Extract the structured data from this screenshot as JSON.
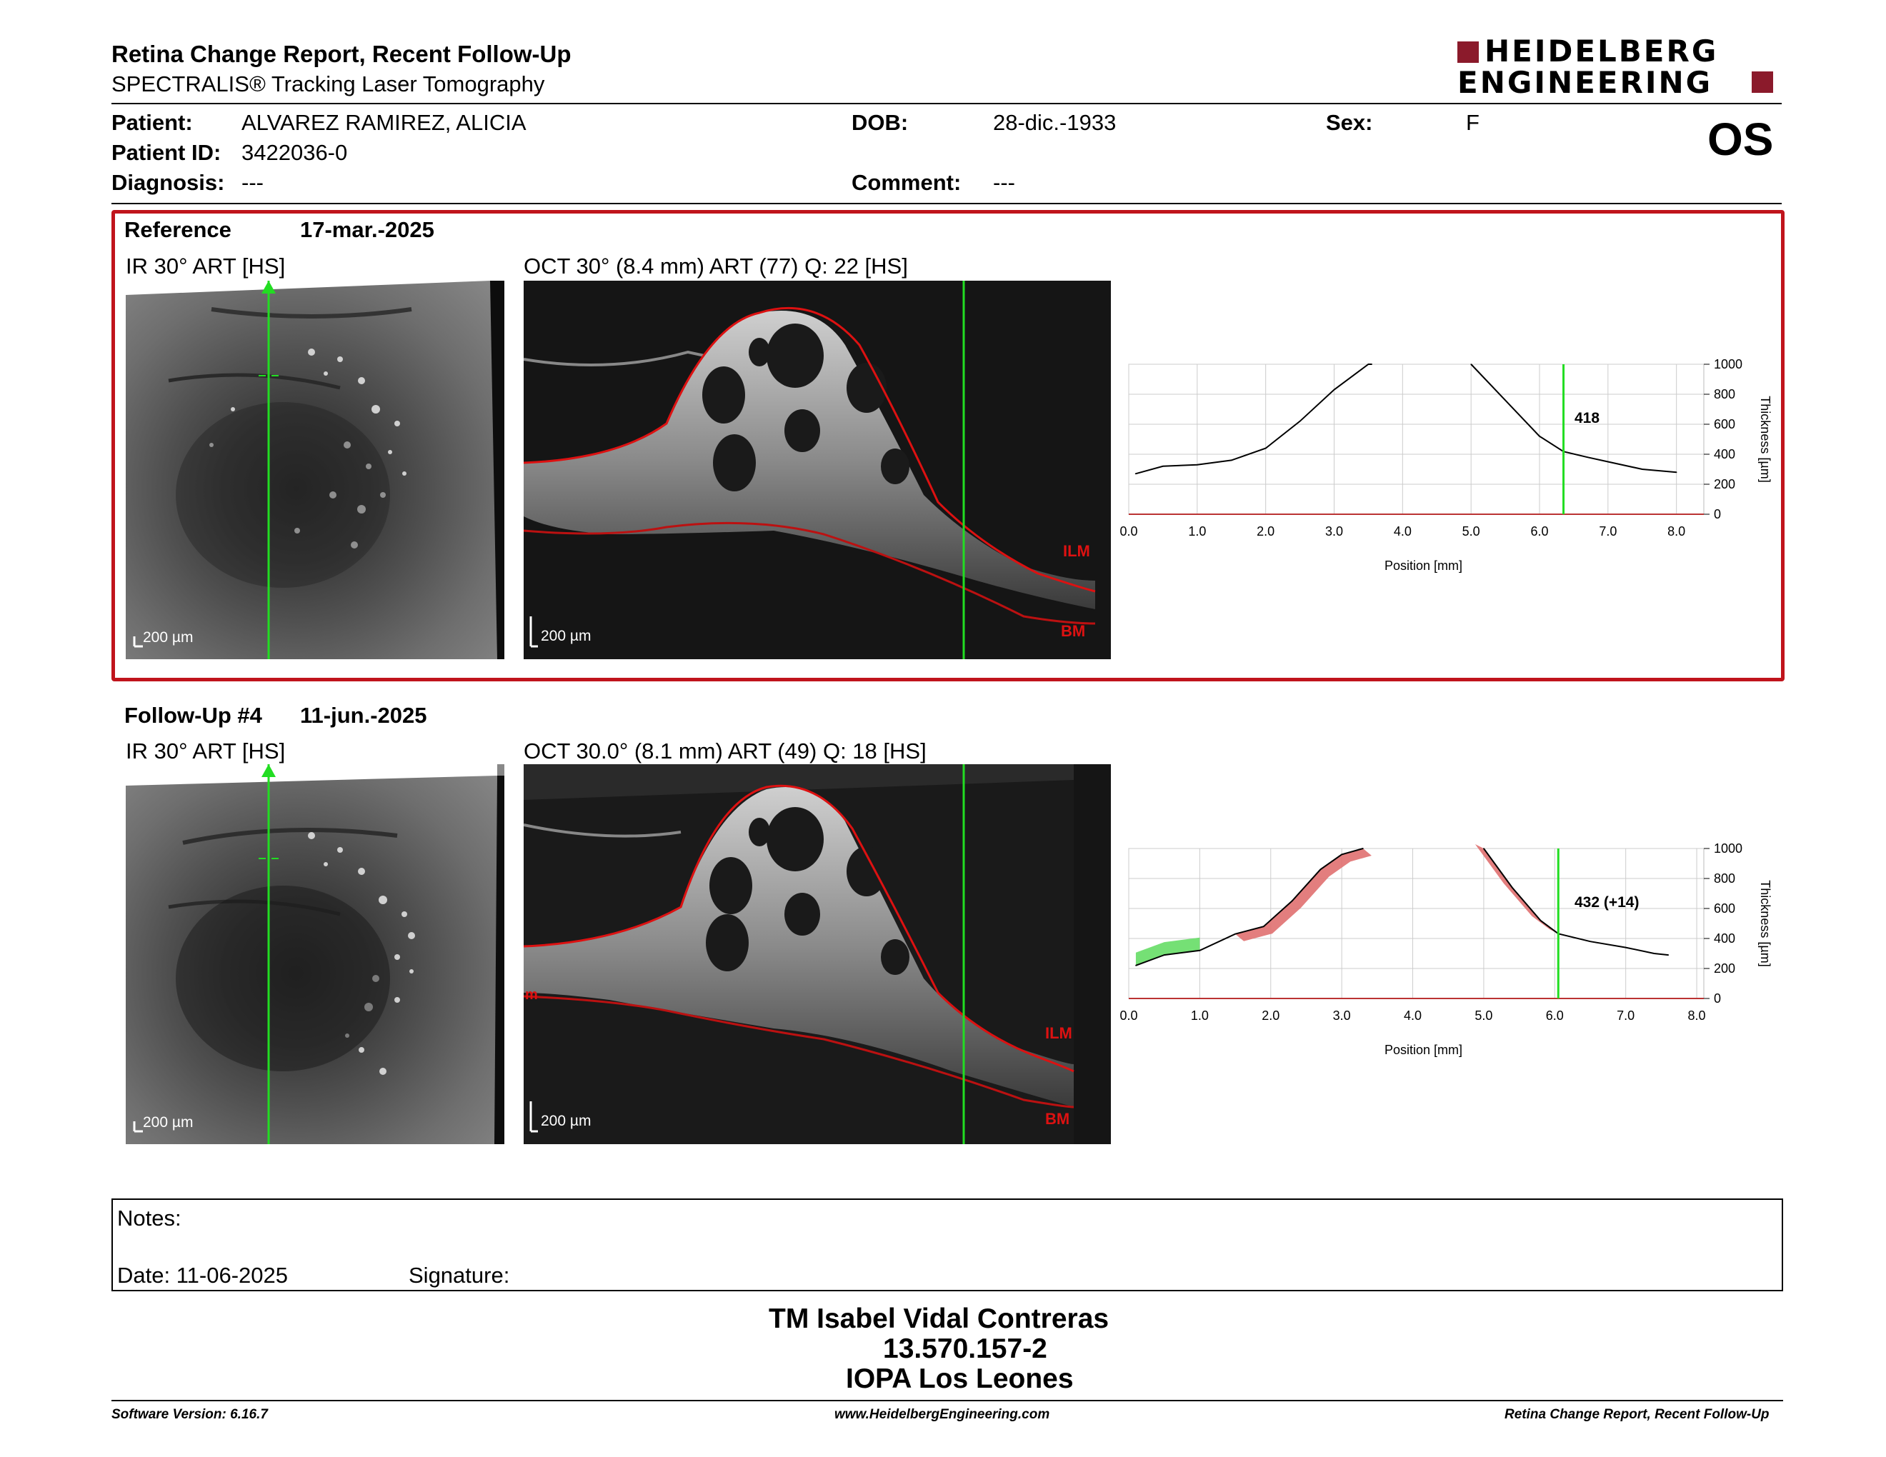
{
  "header": {
    "title": "Retina Change Report, Recent Follow-Up",
    "subtitle": "SPECTRALIS® Tracking Laser Tomography",
    "logo_line1": "HEIDELBERG",
    "logo_line2": "ENGINEERING",
    "eye": "OS"
  },
  "patient": {
    "name_label": "Patient:",
    "name": "ALVAREZ RAMIREZ, ALICIA",
    "id_label": "Patient ID:",
    "id": "3422036-0",
    "diagnosis_label": "Diagnosis:",
    "diagnosis": "---",
    "dob_label": "DOB:",
    "dob": "28-dic.-1933",
    "comment_label": "Comment:",
    "comment": "---",
    "sex_label": "Sex:",
    "sex": "F"
  },
  "reference": {
    "label": "Reference",
    "date": "17-mar.-2025",
    "ir_title": "IR 30° ART [HS]",
    "oct_title": "OCT 30° (8.4 mm) ART (77) Q: 22 [HS]",
    "ir_scale": "200 µm",
    "oct_scale": "200 µm",
    "ilm_label": "ILM",
    "bm_label": "BM",
    "thickness_label": "418"
  },
  "followup": {
    "label": "Follow-Up #4",
    "date": "11-jun.-2025",
    "ir_title": "IR 30° ART [HS]",
    "oct_title": "OCT 30.0° (8.1 mm) ART (49) Q: 18 [HS]",
    "ir_scale": "200 µm",
    "oct_scale": "200 µm",
    "ilm_label": "ILM",
    "bm_label": "BM",
    "edge_label": "m",
    "thickness_label": "432 (+14)"
  },
  "chart_data": [
    {
      "type": "line",
      "xlabel": "Position [mm]",
      "ylabel": "Thickness [µm]",
      "xlim": [
        0,
        8.4
      ],
      "ylim": [
        0,
        1000
      ],
      "xticks": [
        "0.0",
        "1.0",
        "2.0",
        "3.0",
        "4.0",
        "5.0",
        "6.0",
        "7.0",
        "8.0"
      ],
      "yticks": [
        "0",
        "200",
        "400",
        "600",
        "800",
        "1000"
      ],
      "grid": true,
      "marker_x": 6.35,
      "series": [
        {
          "x": [
            0.1,
            0.5,
            1.0,
            1.5,
            2.0,
            2.5,
            3.0,
            3.5,
            3.55
          ],
          "y": [
            270,
            320,
            330,
            360,
            440,
            620,
            830,
            1000,
            1000
          ]
        },
        {
          "x": [
            5.0,
            5.5,
            6.0,
            6.35,
            6.7,
            7.0,
            7.5,
            8.0
          ],
          "y": [
            1000,
            760,
            520,
            418,
            380,
            350,
            300,
            280
          ]
        }
      ]
    },
    {
      "type": "line",
      "xlabel": "Position [mm]",
      "ylabel": "Thickness [µm]",
      "xlim": [
        0,
        8.1
      ],
      "ylim": [
        0,
        1000
      ],
      "xticks": [
        "0.0",
        "1.0",
        "2.0",
        "3.0",
        "4.0",
        "5.0",
        "6.0",
        "7.0",
        "8.0"
      ],
      "yticks": [
        "0",
        "200",
        "400",
        "600",
        "800",
        "1000"
      ],
      "grid": true,
      "marker_x": 6.05,
      "series": [
        {
          "x": [
            0.1,
            0.5,
            1.0,
            1.5,
            1.9,
            2.3,
            2.7,
            3.0,
            3.3
          ],
          "y": [
            220,
            290,
            320,
            430,
            480,
            650,
            860,
            960,
            1000
          ]
        },
        {
          "x": [
            5.0,
            5.4,
            5.8,
            6.05,
            6.5,
            7.0,
            7.4,
            7.6
          ],
          "y": [
            1000,
            740,
            520,
            432,
            380,
            340,
            300,
            290
          ]
        }
      ]
    }
  ],
  "notes": {
    "notes_label": "Notes:",
    "date_label": "Date: 11-06-2025",
    "signature_label": "Signature:"
  },
  "signer": {
    "name": "TM Isabel Vidal Contreras",
    "id": "13.570.157-2",
    "org": "IOPA Los Leones"
  },
  "footer": {
    "software": "Software Version: 6.16.7",
    "url": "www.HeidelbergEngineering.com",
    "report": "Retina Change Report, Recent Follow-Up"
  },
  "colors": {
    "frame_red": "#c0141c",
    "marker_green": "#22dd22",
    "logo_red": "#8b1a2b",
    "increase_fill": "#e07070",
    "decrease_fill": "#66dd66"
  }
}
